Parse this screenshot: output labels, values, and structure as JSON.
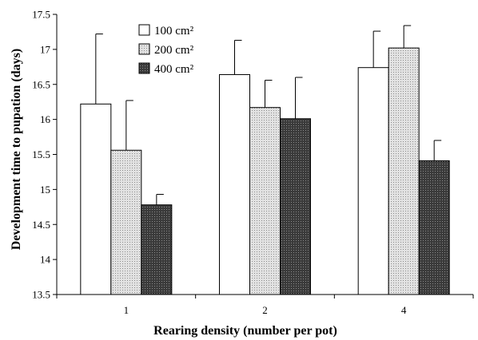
{
  "chart_data": {
    "type": "bar",
    "title": "",
    "xlabel": "Rearing density (number per pot)",
    "ylabel": "Development time to pupation (days)",
    "categories": [
      "1",
      "2",
      "4"
    ],
    "ylim": [
      13.5,
      17.5
    ],
    "yticks": [
      "13.5",
      "14",
      "14.5",
      "15",
      "15.5",
      "16",
      "16.5",
      "17",
      "17.5"
    ],
    "grid": false,
    "legend_position": "top-left",
    "series": [
      {
        "name": "100 cm²",
        "values": [
          16.22,
          16.64,
          16.74
        ],
        "errors": [
          1.0,
          0.49,
          0.52
        ],
        "fill": "white"
      },
      {
        "name": "200 cm²",
        "values": [
          15.56,
          16.17,
          17.02
        ],
        "errors": [
          0.71,
          0.39,
          0.32
        ],
        "fill": "light-stipple"
      },
      {
        "name": "400 cm²",
        "values": [
          14.78,
          16.01,
          15.41
        ],
        "errors": [
          0.15,
          0.59,
          0.29
        ],
        "fill": "dark-stipple"
      }
    ],
    "colors": {
      "white": "#ffffff",
      "light_stipple_bg": "#e2e2e2",
      "light_stipple_dot": "#8c8c8c",
      "dark_stipple_bg": "#3a3a3a",
      "dark_stipple_dot": "#8a8a8a",
      "stroke": "#000000"
    }
  }
}
